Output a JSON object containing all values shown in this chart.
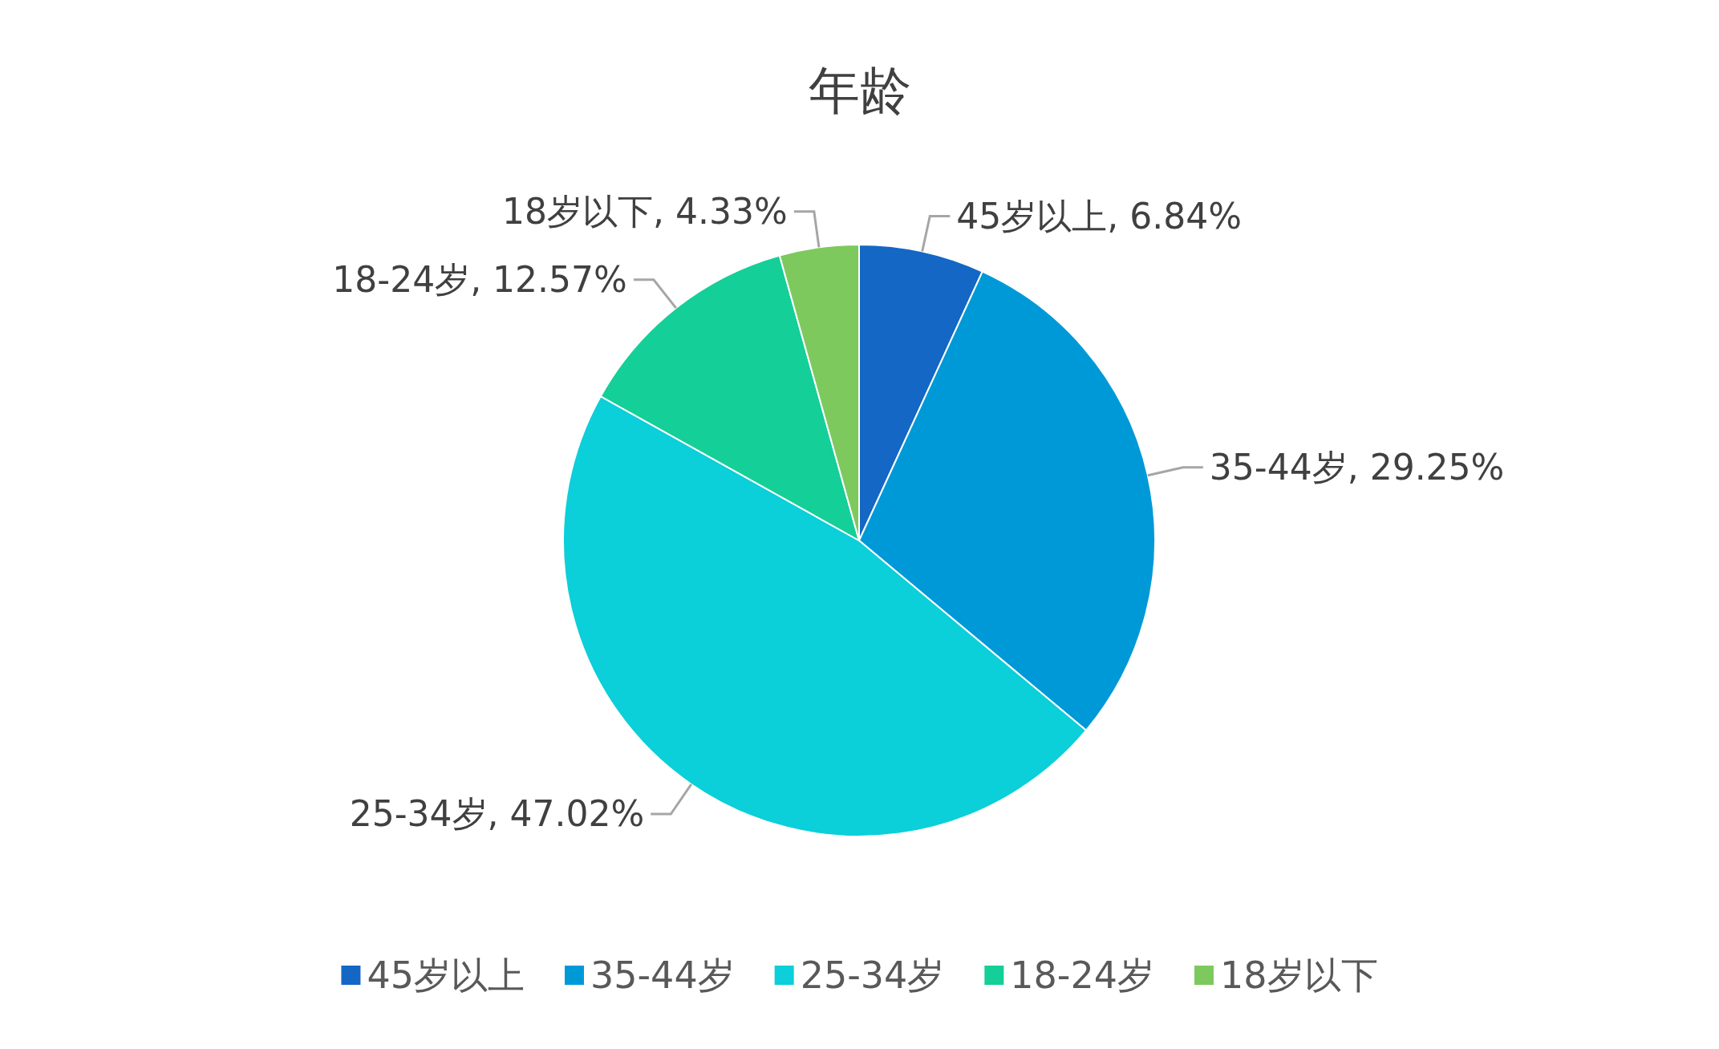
{
  "chart_data": {
    "type": "pie",
    "title": "年龄",
    "categories": [
      "45岁以上",
      "35-44岁",
      "25-34岁",
      "18-24岁",
      "18岁以下"
    ],
    "values": [
      6.84,
      29.25,
      47.02,
      12.57,
      4.33
    ],
    "colors": [
      "#1467c4",
      "#0099d8",
      "#0bcfd9",
      "#14cf97",
      "#7dc95e"
    ],
    "value_labels": [
      "45岁以上, 6.84%",
      "35-44岁, 29.25%",
      "25-34岁, 47.02%",
      "18-24岁, 12.57%",
      "18岁以下, 4.33%"
    ],
    "legend": "bottom"
  }
}
